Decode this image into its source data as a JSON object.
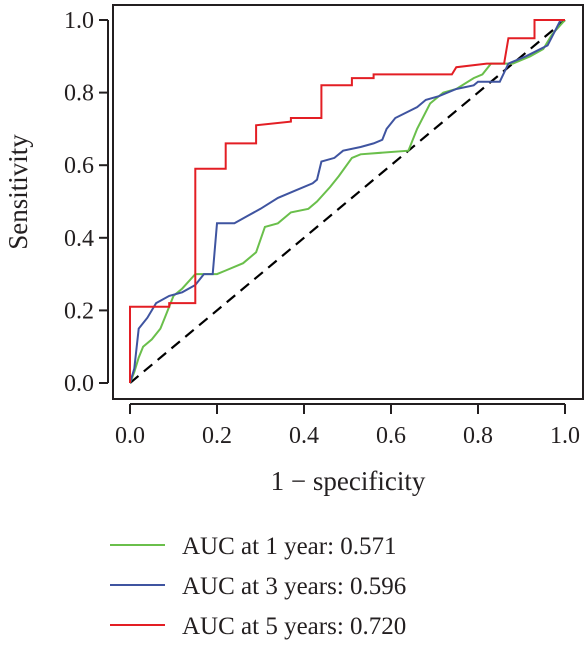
{
  "chart_data": {
    "type": "line",
    "xlabel": "1 − specificity",
    "ylabel": "Sensitivity",
    "xlim": [
      0,
      1
    ],
    "ylim": [
      0,
      1
    ],
    "x_ticks": [
      "0.0",
      "0.2",
      "0.4",
      "0.6",
      "0.8",
      "1.0"
    ],
    "y_ticks": [
      "0.0",
      "0.2",
      "0.4",
      "0.6",
      "0.8",
      "1.0"
    ],
    "grid": false,
    "legend_position": "bottom",
    "reference_line": {
      "style": "dashed",
      "color": "#000000",
      "from": [
        0,
        0
      ],
      "to": [
        1,
        1
      ]
    },
    "series": [
      {
        "name": "AUC at 1 year: 0.571",
        "color": "#6abf4b",
        "points": [
          [
            0,
            0
          ],
          [
            0.01,
            0.03
          ],
          [
            0.02,
            0.07
          ],
          [
            0.03,
            0.1
          ],
          [
            0.05,
            0.12
          ],
          [
            0.07,
            0.15
          ],
          [
            0.08,
            0.18
          ],
          [
            0.1,
            0.24
          ],
          [
            0.12,
            0.26
          ],
          [
            0.15,
            0.3
          ],
          [
            0.2,
            0.3
          ],
          [
            0.22,
            0.31
          ],
          [
            0.26,
            0.33
          ],
          [
            0.29,
            0.36
          ],
          [
            0.31,
            0.43
          ],
          [
            0.34,
            0.44
          ],
          [
            0.37,
            0.47
          ],
          [
            0.41,
            0.48
          ],
          [
            0.43,
            0.5
          ],
          [
            0.46,
            0.54
          ],
          [
            0.48,
            0.57
          ],
          [
            0.51,
            0.62
          ],
          [
            0.53,
            0.63
          ],
          [
            0.64,
            0.64
          ],
          [
            0.66,
            0.7
          ],
          [
            0.69,
            0.77
          ],
          [
            0.72,
            0.8
          ],
          [
            0.75,
            0.81
          ],
          [
            0.79,
            0.84
          ],
          [
            0.81,
            0.85
          ],
          [
            0.83,
            0.88
          ],
          [
            0.88,
            0.88
          ],
          [
            0.92,
            0.9
          ],
          [
            0.95,
            0.92
          ],
          [
            0.97,
            0.96
          ],
          [
            1,
            1
          ]
        ]
      },
      {
        "name": "AUC at 3 years: 0.596",
        "color": "#3f54a0",
        "points": [
          [
            0,
            0
          ],
          [
            0.01,
            0.04
          ],
          [
            0.02,
            0.15
          ],
          [
            0.04,
            0.18
          ],
          [
            0.06,
            0.22
          ],
          [
            0.09,
            0.24
          ],
          [
            0.12,
            0.25
          ],
          [
            0.15,
            0.27
          ],
          [
            0.17,
            0.3
          ],
          [
            0.19,
            0.3
          ],
          [
            0.2,
            0.44
          ],
          [
            0.24,
            0.44
          ],
          [
            0.27,
            0.46
          ],
          [
            0.3,
            0.48
          ],
          [
            0.34,
            0.51
          ],
          [
            0.38,
            0.53
          ],
          [
            0.42,
            0.55
          ],
          [
            0.43,
            0.56
          ],
          [
            0.44,
            0.61
          ],
          [
            0.47,
            0.62
          ],
          [
            0.49,
            0.64
          ],
          [
            0.53,
            0.65
          ],
          [
            0.56,
            0.66
          ],
          [
            0.58,
            0.67
          ],
          [
            0.59,
            0.7
          ],
          [
            0.61,
            0.73
          ],
          [
            0.66,
            0.76
          ],
          [
            0.68,
            0.78
          ],
          [
            0.71,
            0.79
          ],
          [
            0.75,
            0.81
          ],
          [
            0.79,
            0.82
          ],
          [
            0.8,
            0.83
          ],
          [
            0.85,
            0.83
          ],
          [
            0.87,
            0.88
          ],
          [
            0.91,
            0.9
          ],
          [
            0.96,
            0.93
          ],
          [
            0.99,
            1.0
          ]
        ]
      },
      {
        "name": "AUC at 5 years: 0.720",
        "color": "#e31e24",
        "points": [
          [
            0,
            0
          ],
          [
            0,
            0.21
          ],
          [
            0.09,
            0.21
          ],
          [
            0.09,
            0.22
          ],
          [
            0.15,
            0.22
          ],
          [
            0.15,
            0.59
          ],
          [
            0.22,
            0.59
          ],
          [
            0.22,
            0.66
          ],
          [
            0.29,
            0.66
          ],
          [
            0.29,
            0.71
          ],
          [
            0.37,
            0.72
          ],
          [
            0.37,
            0.73
          ],
          [
            0.44,
            0.73
          ],
          [
            0.44,
            0.82
          ],
          [
            0.51,
            0.82
          ],
          [
            0.51,
            0.84
          ],
          [
            0.56,
            0.84
          ],
          [
            0.56,
            0.85
          ],
          [
            0.74,
            0.85
          ],
          [
            0.75,
            0.87
          ],
          [
            0.82,
            0.88
          ],
          [
            0.86,
            0.88
          ],
          [
            0.87,
            0.95
          ],
          [
            0.93,
            0.95
          ],
          [
            0.93,
            1.0
          ],
          [
            1,
            1
          ]
        ]
      }
    ]
  }
}
